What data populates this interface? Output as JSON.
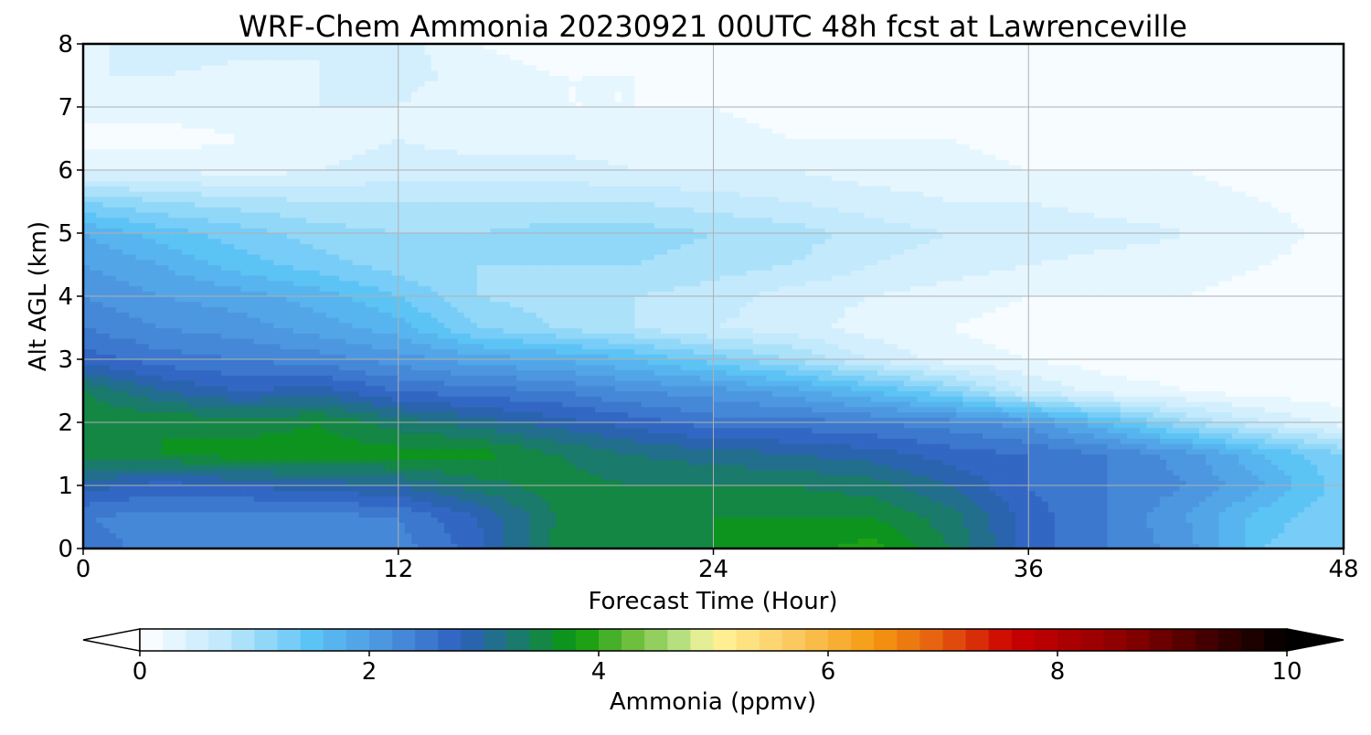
{
  "chart_data": {
    "type": "heatmap",
    "title": "WRF-Chem Ammonia  20230921 00UTC 48h fcst at Lawrenceville",
    "xlabel": "Forecast Time (Hour)",
    "ylabel": "Alt AGL (km)",
    "xlim": [
      0,
      48
    ],
    "ylim": [
      0,
      8
    ],
    "xticks": [
      0,
      12,
      24,
      36,
      48
    ],
    "yticks": [
      0,
      1,
      2,
      3,
      4,
      5,
      6,
      7,
      8
    ],
    "grid": true,
    "x": [
      0,
      3,
      6,
      9,
      12,
      15,
      18,
      21,
      24,
      27,
      30,
      33,
      36,
      39,
      42,
      45,
      48
    ],
    "y": [
      0,
      0.5,
      1,
      1.5,
      2,
      2.5,
      3,
      3.5,
      4,
      4.5,
      5,
      5.5,
      6,
      6.5,
      7,
      7.5,
      8
    ],
    "z": [
      [
        2.6,
        2.2,
        2.2,
        2.2,
        2.3,
        2.7,
        3.5,
        3.6,
        3.6,
        3.7,
        3.9,
        3.4,
        2.7,
        2.4,
        2.1,
        1.4,
        1.2
      ],
      [
        2.4,
        2.3,
        2.3,
        2.3,
        2.4,
        2.8,
        3.4,
        3.5,
        3.6,
        3.6,
        3.6,
        3.3,
        2.7,
        2.4,
        2.0,
        1.5,
        1.2
      ],
      [
        2.9,
        2.7,
        2.8,
        2.9,
        3.0,
        3.3,
        3.5,
        3.4,
        3.4,
        3.4,
        3.3,
        3.0,
        2.6,
        2.4,
        2.2,
        1.8,
        1.3
      ],
      [
        3.5,
        3.6,
        3.7,
        3.7,
        3.7,
        3.7,
        3.4,
        3.2,
        3.1,
        3.0,
        2.9,
        2.7,
        2.6,
        2.4,
        2.1,
        1.6,
        1.2
      ],
      [
        3.6,
        3.6,
        3.5,
        3.6,
        3.3,
        3.1,
        2.9,
        2.7,
        2.5,
        2.5,
        2.4,
        2.3,
        2.1,
        1.6,
        1.0,
        0.6,
        0.3
      ],
      [
        3.4,
        3.0,
        2.8,
        2.9,
        2.6,
        2.5,
        2.4,
        2.2,
        2.1,
        1.9,
        1.6,
        1.2,
        0.6,
        0.3,
        0.2,
        0.1,
        0.1
      ],
      [
        2.7,
        2.5,
        2.4,
        2.3,
        2.1,
        1.9,
        1.8,
        1.6,
        1.3,
        1.0,
        0.6,
        0.3,
        0.2,
        0.1,
        0.1,
        0.1,
        0.1
      ],
      [
        2.4,
        2.2,
        2.1,
        1.9,
        1.7,
        1.2,
        1.0,
        0.8,
        0.6,
        0.5,
        0.3,
        0.2,
        0.1,
        0.1,
        0.1,
        0.1,
        0.1
      ],
      [
        2.2,
        2.0,
        1.9,
        1.7,
        1.4,
        1.0,
        0.9,
        0.8,
        0.7,
        0.5,
        0.4,
        0.3,
        0.2,
        0.2,
        0.2,
        0.1,
        0.1
      ],
      [
        2.0,
        1.8,
        1.5,
        1.3,
        1.1,
        1.0,
        1.0,
        1.0,
        0.9,
        0.8,
        0.6,
        0.5,
        0.4,
        0.3,
        0.3,
        0.2,
        0.1
      ],
      [
        1.8,
        1.5,
        1.3,
        1.1,
        1.0,
        1.0,
        1.1,
        1.1,
        1.0,
        0.9,
        0.7,
        0.6,
        0.6,
        0.5,
        0.4,
        0.3,
        0.1
      ],
      [
        1.2,
        1.0,
        0.9,
        0.8,
        0.8,
        0.8,
        0.8,
        0.8,
        0.7,
        0.6,
        0.5,
        0.4,
        0.4,
        0.3,
        0.3,
        0.2,
        0.1
      ],
      [
        0.4,
        0.4,
        0.3,
        0.4,
        0.5,
        0.5,
        0.5,
        0.4,
        0.4,
        0.4,
        0.3,
        0.3,
        0.2,
        0.2,
        0.2,
        0.1,
        0.1
      ],
      [
        0.1,
        0.1,
        0.2,
        0.3,
        0.4,
        0.3,
        0.3,
        0.3,
        0.3,
        0.2,
        0.2,
        0.2,
        0.1,
        0.1,
        0.1,
        0.1,
        0.1
      ],
      [
        0.3,
        0.3,
        0.3,
        0.4,
        0.4,
        0.2,
        0.2,
        0.2,
        0.2,
        0.1,
        0.1,
        0.1,
        0.1,
        0.1,
        0.2,
        0.1,
        0.1
      ],
      [
        0.4,
        0.4,
        0.3,
        0.4,
        0.5,
        0.3,
        0.2,
        0.2,
        0.1,
        0.1,
        0.1,
        0.1,
        0.1,
        0.1,
        0.2,
        0.1,
        0.1
      ],
      [
        0.3,
        0.6,
        0.5,
        0.4,
        0.5,
        0.2,
        0.1,
        0.1,
        0.1,
        0.1,
        0.1,
        0.1,
        0.1,
        0.1,
        0.2,
        0.1,
        0.1
      ]
    ],
    "colorbar": {
      "label": "Ammonia  (ppmv)",
      "min": 0,
      "max": 10,
      "ticks": [
        0,
        2,
        4,
        6,
        8,
        10
      ],
      "extend": "both",
      "levels": 50,
      "stops": [
        [
          0.0,
          "#ffffff"
        ],
        [
          0.8,
          "#b9e6fb"
        ],
        [
          1.5,
          "#5cc3f5"
        ],
        [
          2.2,
          "#4a90dc"
        ],
        [
          2.8,
          "#2e5fbf"
        ],
        [
          3.3,
          "#1a7a6c"
        ],
        [
          3.8,
          "#0a9a0a"
        ],
        [
          4.3,
          "#6fbf3f"
        ],
        [
          4.8,
          "#c8e890"
        ],
        [
          5.0,
          "#fff59a"
        ],
        [
          5.6,
          "#fcd06a"
        ],
        [
          6.4,
          "#f59a10"
        ],
        [
          7.0,
          "#e45a10"
        ],
        [
          7.6,
          "#cc0000"
        ],
        [
          8.6,
          "#8a0000"
        ],
        [
          9.4,
          "#3a0000"
        ],
        [
          10.0,
          "#000000"
        ]
      ]
    }
  }
}
